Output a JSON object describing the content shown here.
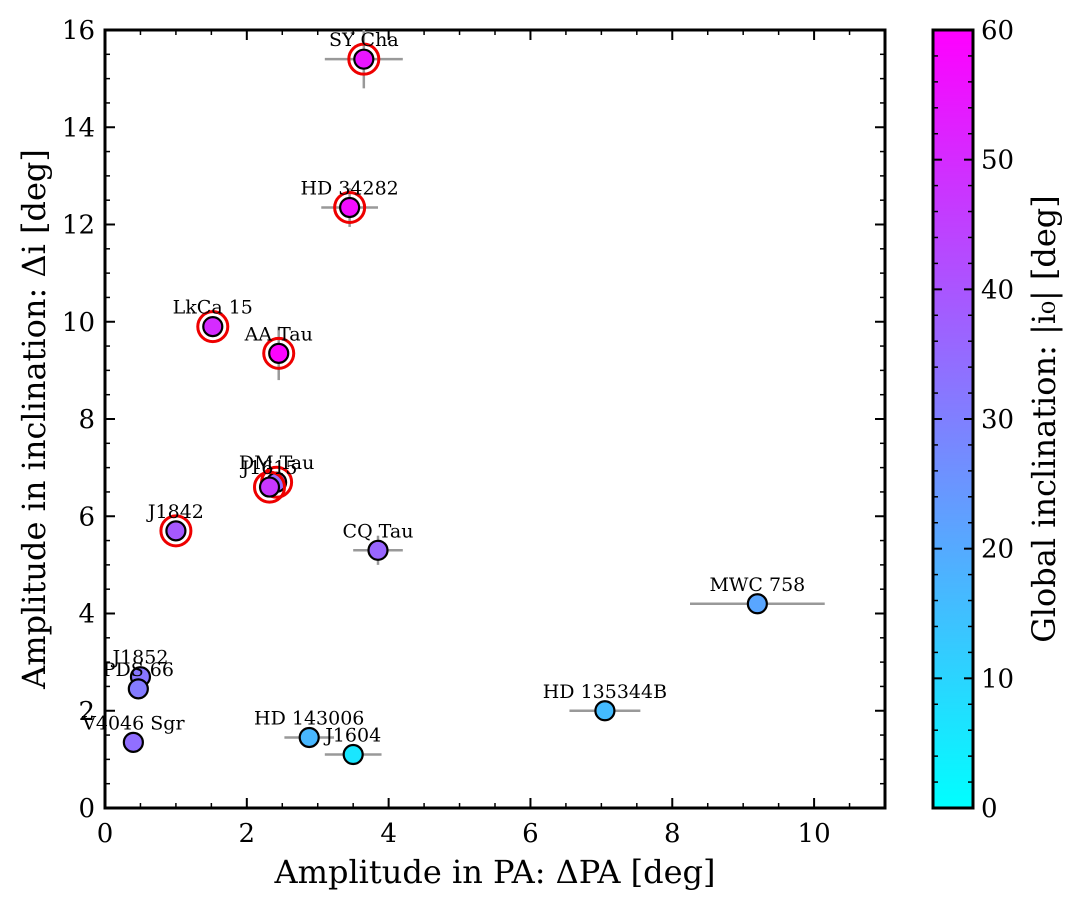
{
  "chart_data": {
    "type": "scatter",
    "xlabel": "Amplitude in PA: ΔPA [deg]",
    "ylabel": "Amplitude in inclination: Δi [deg]",
    "xlim": [
      0,
      11
    ],
    "ylim": [
      0,
      16
    ],
    "x_ticks": [
      "0",
      "2",
      "4",
      "6",
      "8",
      "10"
    ],
    "y_ticks": [
      "0",
      "2",
      "4",
      "6",
      "8",
      "10",
      "12",
      "14",
      "16"
    ],
    "grid": false,
    "colorbar": {
      "label": "Global inclination: |i₀| [deg]",
      "range": [
        0,
        60
      ],
      "ticks": [
        "0",
        "10",
        "20",
        "30",
        "40",
        "50",
        "60"
      ],
      "colormap": [
        "#00ffff",
        "#ff00ff"
      ]
    },
    "points": [
      {
        "name": "SY Cha",
        "x": 3.65,
        "y": 15.4,
        "xerr": 0.55,
        "yerr": 0.6,
        "inc": 55,
        "highlight": true
      },
      {
        "name": "HD 34282",
        "x": 3.45,
        "y": 12.35,
        "xerr": 0.4,
        "yerr": 0.4,
        "inc": 57,
        "highlight": true
      },
      {
        "name": "LkCa 15",
        "x": 1.52,
        "y": 9.9,
        "xerr": 0,
        "yerr": 0,
        "inc": 50,
        "highlight": true
      },
      {
        "name": "AA Tau",
        "x": 2.45,
        "y": 9.35,
        "xerr": 0.1,
        "yerr": 0.55,
        "inc": 59,
        "highlight": true
      },
      {
        "name": "DM Tau",
        "x": 2.42,
        "y": 6.7,
        "xerr": 0,
        "yerr": 0,
        "inc": 35,
        "highlight": true
      },
      {
        "name": "J1615",
        "x": 2.32,
        "y": 6.6,
        "xerr": 0,
        "yerr": 0,
        "inc": 47,
        "highlight": true
      },
      {
        "name": "J1842",
        "x": 1.0,
        "y": 5.7,
        "xerr": 0,
        "yerr": 0,
        "inc": 39,
        "highlight": true
      },
      {
        "name": "CQ Tau",
        "x": 3.85,
        "y": 5.3,
        "xerr": 0.35,
        "yerr": 0.3,
        "inc": 36,
        "highlight": false
      },
      {
        "name": "MWC 758",
        "x": 9.2,
        "y": 4.2,
        "xerr": 0.95,
        "yerr": 0.2,
        "inc": 21,
        "highlight": false
      },
      {
        "name": "J1852",
        "x": 0.5,
        "y": 2.7,
        "xerr": 0,
        "yerr": 0,
        "inc": 32,
        "highlight": false
      },
      {
        "name": "PDS 66",
        "x": 0.47,
        "y": 2.45,
        "xerr": 0,
        "yerr": 0,
        "inc": 31,
        "highlight": false
      },
      {
        "name": "V4046 Sgr",
        "x": 0.4,
        "y": 1.35,
        "xerr": 0,
        "yerr": 0,
        "inc": 34,
        "highlight": false
      },
      {
        "name": "HD 135344B",
        "x": 7.05,
        "y": 2.0,
        "xerr": 0.5,
        "yerr": 0,
        "inc": 16,
        "highlight": false
      },
      {
        "name": "HD 143006",
        "x": 2.88,
        "y": 1.45,
        "xerr": 0.35,
        "yerr": 0,
        "inc": 17,
        "highlight": false
      },
      {
        "name": "J1604",
        "x": 3.5,
        "y": 1.1,
        "xerr": 0.4,
        "yerr": 0.15,
        "inc": 6,
        "highlight": false
      }
    ]
  }
}
